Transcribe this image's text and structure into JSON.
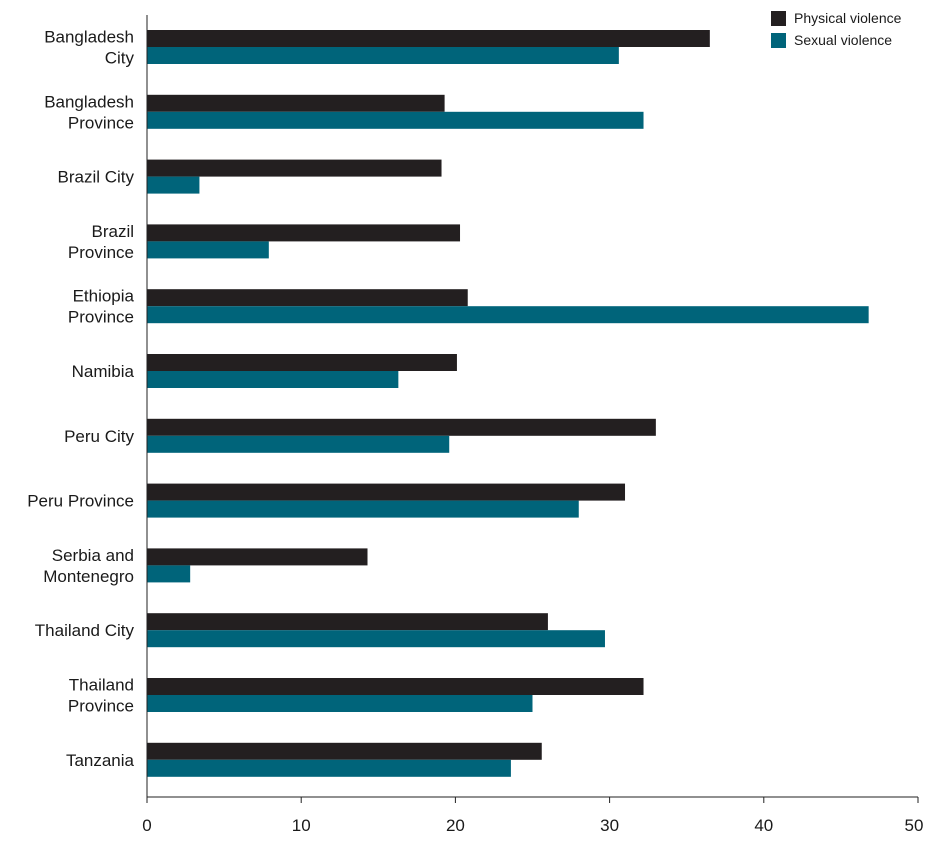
{
  "chart_data": {
    "type": "bar",
    "orientation": "horizontal",
    "title": "",
    "xlabel": "",
    "ylabel": "",
    "xlim": [
      0,
      50
    ],
    "x_ticks": [
      "0",
      "10",
      "20",
      "30",
      "40",
      "50"
    ],
    "grid": false,
    "legend_position": "top-right",
    "categories": [
      [
        "Bangladesh",
        "City"
      ],
      [
        "Bangladesh",
        "Province"
      ],
      [
        "Brazil City"
      ],
      [
        "Brazil",
        "Province"
      ],
      [
        "Ethiopia",
        "Province"
      ],
      [
        "Namibia"
      ],
      [
        "Peru City"
      ],
      [
        "Peru Province"
      ],
      [
        "Serbia and",
        "Montenegro"
      ],
      [
        "Thailand City"
      ],
      [
        "Thailand",
        "Province"
      ],
      [
        "Tanzania"
      ]
    ],
    "series": [
      {
        "name": "Physical violence",
        "color": "#231f20",
        "values": [
          36.5,
          19.3,
          19.1,
          20.3,
          20.8,
          20.1,
          33.0,
          31.0,
          14.3,
          26.0,
          32.2,
          25.6
        ]
      },
      {
        "name": "Sexual violence",
        "color": "#00647a",
        "values": [
          30.6,
          32.2,
          3.4,
          7.9,
          46.8,
          16.3,
          19.6,
          28.0,
          2.8,
          29.7,
          25.0,
          23.6
        ]
      }
    ]
  }
}
